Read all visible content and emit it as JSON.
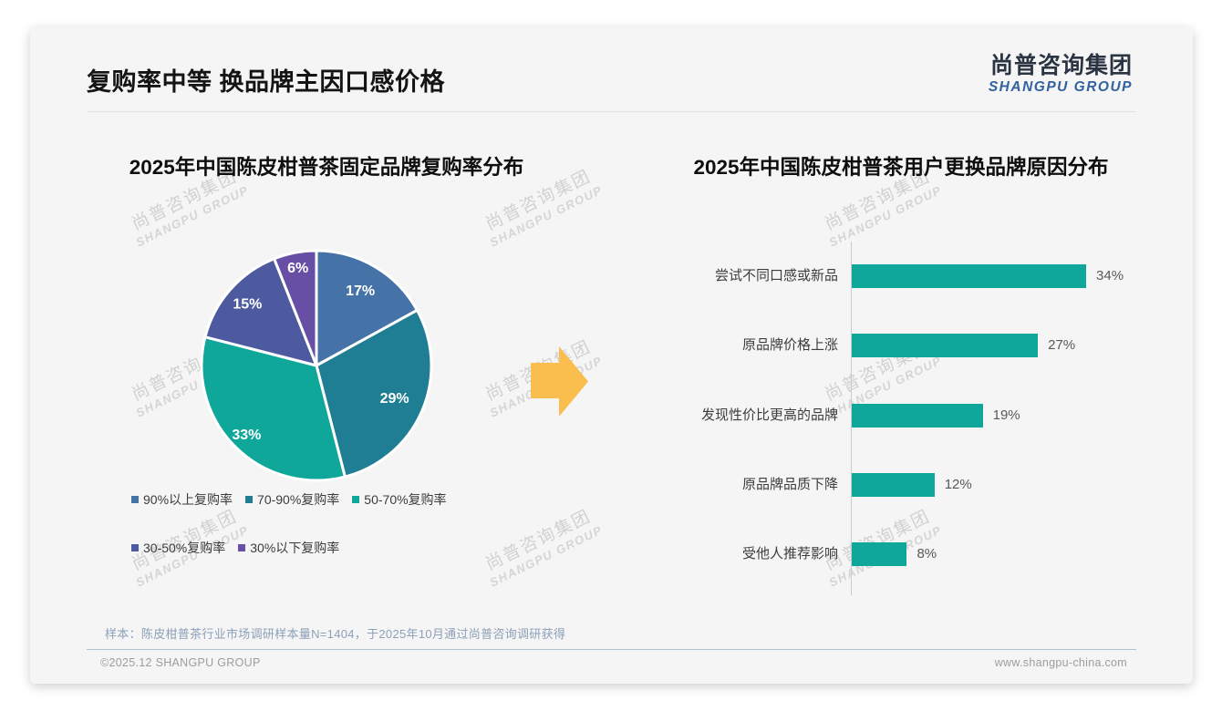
{
  "header": {
    "title": "复购率中等 换品牌主因口感价格"
  },
  "logo": {
    "chinese": "尚普咨询集团",
    "english": "SHANGPU GROUP"
  },
  "watermark": {
    "line1": "尚普咨询集团",
    "line2": "SHANGPU GROUP"
  },
  "arrow": {
    "color": "#F9BE4D"
  },
  "chart_data": [
    {
      "type": "pie",
      "title": "2025年中国陈皮柑普茶固定品牌复购率分布",
      "slices": [
        {
          "label": "90%以上复购率",
          "value": 17,
          "color": "#4573A8"
        },
        {
          "label": "70-90%复购率",
          "value": 29,
          "color": "#1F7E93"
        },
        {
          "label": "50-70%复购率",
          "value": 33,
          "color": "#10A79B"
        },
        {
          "label": "30-50%复购率",
          "value": 15,
          "color": "#4E5AA0"
        },
        {
          "label": "30%以下复购率",
          "value": 6,
          "color": "#674FA5"
        }
      ],
      "value_suffix": "%",
      "start_angle_deg": 0,
      "clockwise": true,
      "slice_border_color": "#FFFFFF",
      "legend_position": "below",
      "data_labels": "inside-white-bold"
    },
    {
      "type": "bar",
      "title": "2025年中国陈皮柑普茶用户更换品牌原因分布",
      "orientation": "horizontal",
      "categories": [
        "尝试不同口感或新品",
        "原品牌价格上涨",
        "发现性价比更高的品牌",
        "原品牌品质下降",
        "受他人推荐影响"
      ],
      "values": [
        34,
        27,
        19,
        12,
        8
      ],
      "value_suffix": "%",
      "bar_color": "#10A79B",
      "xlim": [
        0,
        40
      ],
      "grid": false,
      "axis_line": "left-vertical"
    }
  ],
  "footnote": {
    "text": "样本：陈皮柑普茶行业市场调研样本量N=1404，于2025年10月通过尚普咨询调研获得"
  },
  "footer": {
    "copyright": "©2025.12 SHANGPU GROUP",
    "website": "www.shangpu-china.com"
  }
}
